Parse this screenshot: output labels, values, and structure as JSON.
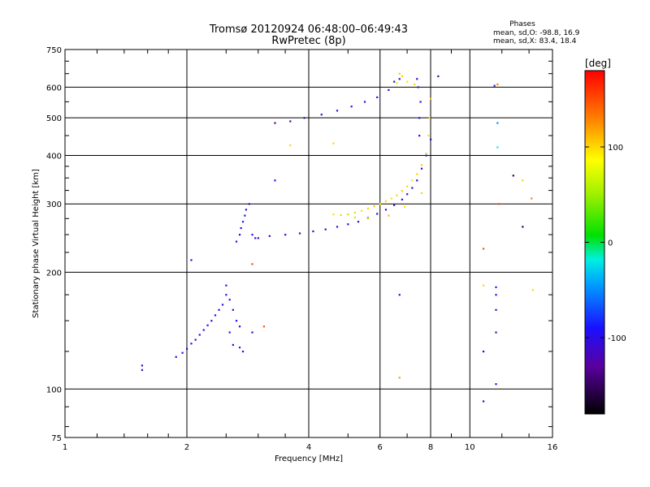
{
  "chart_data": {
    "type": "scatter",
    "title": "Tromsø 20120924 06:48:00–06:49:43",
    "subtitle": "RwPretec (8p)",
    "xlabel": "Frequency [MHz]",
    "ylabel": "Stationary phase Virtual Height [km]",
    "x_scale": "log",
    "y_scale": "log",
    "xlim": [
      1,
      16
    ],
    "ylim": [
      75,
      750
    ],
    "x_ticks": [
      1,
      2,
      4,
      6,
      8,
      10,
      16
    ],
    "x_tick_labels": [
      "1",
      "2",
      "4",
      "6",
      "8",
      "10",
      "16"
    ],
    "y_ticks": [
      75,
      100,
      200,
      300,
      400,
      500,
      600,
      750
    ],
    "y_tick_labels": [
      "75",
      "100",
      "200",
      "300",
      "400",
      "500",
      "600",
      "750"
    ],
    "grid": true,
    "phases_box": {
      "title": "Phases",
      "line1": "mean, sd,O: -98.8, 16.9",
      "line2": "mean, sd,X:  83.4, 18.4"
    },
    "colorbar": {
      "label": "[deg]",
      "range": [
        -180,
        180
      ],
      "ticks": [
        -100,
        0,
        100
      ],
      "tick_labels": [
        "-100",
        "0",
        "100"
      ]
    },
    "series": [
      {
        "points": [
          [
            1.55,
            115,
            -110
          ],
          [
            1.55,
            112,
            -115
          ],
          [
            1.88,
            121,
            -100
          ],
          [
            1.95,
            124,
            -105
          ],
          [
            2.0,
            127,
            -110
          ],
          [
            2.05,
            131,
            -108
          ],
          [
            2.1,
            134,
            -105
          ],
          [
            2.15,
            138,
            -100
          ],
          [
            2.2,
            142,
            -95
          ],
          [
            2.25,
            146,
            -100
          ],
          [
            2.3,
            150,
            -105
          ],
          [
            2.35,
            155,
            -90
          ],
          [
            2.4,
            160,
            -100
          ],
          [
            2.45,
            165,
            -110
          ],
          [
            2.5,
            175,
            -95
          ],
          [
            2.5,
            185,
            -100
          ],
          [
            2.55,
            170,
            -90
          ],
          [
            2.6,
            160,
            -105
          ],
          [
            2.65,
            150,
            -95
          ],
          [
            2.55,
            140,
            -110
          ],
          [
            2.6,
            130,
            -100
          ],
          [
            2.7,
            128,
            -85
          ],
          [
            2.75,
            125,
            -95
          ],
          [
            2.7,
            145,
            -100
          ],
          [
            2.05,
            215,
            -100
          ],
          [
            2.65,
            240,
            -100
          ],
          [
            2.7,
            250,
            -95
          ],
          [
            2.72,
            260,
            -100
          ],
          [
            2.75,
            270,
            -85
          ],
          [
            2.78,
            280,
            -100
          ],
          [
            2.8,
            290,
            -90
          ],
          [
            2.85,
            300,
            -100
          ],
          [
            2.9,
            250,
            -95
          ],
          [
            2.95,
            245,
            -105
          ],
          [
            3.0,
            245,
            -110
          ],
          [
            3.2,
            248,
            -120
          ],
          [
            3.5,
            250,
            -125
          ],
          [
            3.8,
            252,
            -125
          ],
          [
            4.1,
            255,
            -120
          ],
          [
            4.4,
            258,
            -115
          ],
          [
            4.7,
            262,
            -110
          ],
          [
            5.0,
            266,
            -110
          ],
          [
            5.3,
            270,
            -105
          ],
          [
            5.6,
            276,
            -100
          ],
          [
            5.9,
            283,
            -105
          ],
          [
            6.2,
            290,
            -100
          ],
          [
            6.5,
            298,
            -110
          ],
          [
            6.8,
            308,
            -105
          ],
          [
            7.0,
            318,
            -110
          ],
          [
            7.2,
            330,
            -100
          ],
          [
            7.4,
            345,
            -105
          ],
          [
            7.6,
            370,
            -110
          ],
          [
            7.8,
            400,
            -105
          ],
          [
            8.0,
            440,
            -100
          ],
          [
            7.5,
            450,
            -110
          ],
          [
            7.5,
            500,
            -100
          ],
          [
            7.55,
            550,
            -90
          ],
          [
            7.45,
            600,
            -110
          ],
          [
            7.4,
            630,
            -100
          ],
          [
            8.35,
            640,
            -120
          ],
          [
            3.3,
            485,
            -130
          ],
          [
            3.6,
            490,
            -125
          ],
          [
            3.9,
            500,
            -120
          ],
          [
            4.3,
            510,
            -110
          ],
          [
            4.7,
            522,
            -105
          ],
          [
            5.1,
            535,
            -100
          ],
          [
            5.5,
            550,
            -95
          ],
          [
            5.9,
            565,
            -100
          ],
          [
            6.3,
            590,
            -110
          ],
          [
            6.5,
            620,
            -105
          ],
          [
            6.7,
            630,
            -100
          ],
          [
            3.3,
            345,
            -90
          ],
          [
            4.6,
            430,
            100
          ],
          [
            3.6,
            425,
            100
          ],
          [
            2.9,
            210,
            150
          ],
          [
            3.1,
            145,
            150
          ],
          [
            2.9,
            140,
            -120
          ],
          [
            6.7,
            175,
            -95
          ],
          [
            6.7,
            107,
            120
          ],
          [
            10.8,
            230,
            150
          ],
          [
            10.8,
            185,
            100
          ],
          [
            10.8,
            125,
            -100
          ],
          [
            10.8,
            93,
            -115
          ],
          [
            11.6,
            183,
            -85
          ],
          [
            11.6,
            175,
            -90
          ],
          [
            11.6,
            160,
            -115
          ],
          [
            11.6,
            140,
            -120
          ],
          [
            11.6,
            103,
            -100
          ],
          [
            11.5,
            605,
            -110
          ],
          [
            11.7,
            610,
            130
          ],
          [
            11.7,
            485,
            -50
          ],
          [
            11.7,
            420,
            -20
          ],
          [
            11.8,
            300,
            150
          ],
          [
            12.8,
            355,
            -160
          ],
          [
            13.5,
            345,
            100
          ],
          [
            13.5,
            262,
            -150
          ],
          [
            14.2,
            310,
            130
          ],
          [
            14.3,
            180,
            100
          ]
        ]
      },
      {
        "points": [
          [
            4.6,
            282,
            95
          ],
          [
            4.8,
            281,
            100
          ],
          [
            5.0,
            282,
            105
          ],
          [
            5.2,
            285,
            100
          ],
          [
            5.4,
            288,
            95
          ],
          [
            5.6,
            292,
            100
          ],
          [
            5.8,
            296,
            105
          ],
          [
            6.0,
            300,
            95
          ],
          [
            6.2,
            305,
            100
          ],
          [
            6.4,
            310,
            95
          ],
          [
            6.6,
            316,
            100
          ],
          [
            6.8,
            324,
            105
          ],
          [
            7.0,
            333,
            100
          ],
          [
            7.2,
            345,
            95
          ],
          [
            7.4,
            358,
            100
          ],
          [
            7.6,
            378,
            105
          ],
          [
            7.8,
            405,
            100
          ],
          [
            7.9,
            450,
            95
          ],
          [
            7.95,
            500,
            100
          ],
          [
            8.0,
            560,
            105
          ],
          [
            7.3,
            610,
            100
          ],
          [
            7.0,
            620,
            95
          ],
          [
            6.8,
            640,
            100
          ],
          [
            6.7,
            650,
            105
          ],
          [
            6.6,
            615,
            70
          ],
          [
            5.2,
            277,
            60
          ],
          [
            5.6,
            275,
            70
          ],
          [
            6.3,
            280,
            110
          ],
          [
            6.9,
            295,
            95
          ],
          [
            7.6,
            320,
            100
          ]
        ]
      }
    ]
  }
}
